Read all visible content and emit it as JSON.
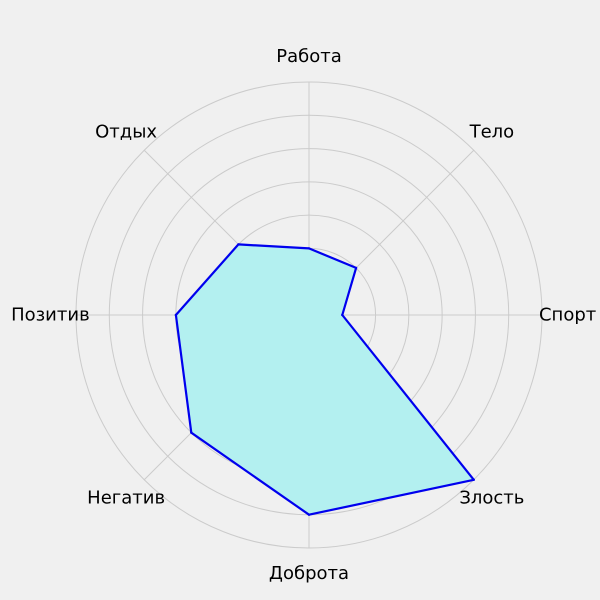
{
  "chart_data": {
    "type": "radar",
    "title": "",
    "categories": [
      "Спорт",
      "Тело",
      "Работа",
      "Отдых",
      "Позитив",
      "Негатив",
      "Доброта",
      "Злость"
    ],
    "values": [
      1,
      2,
      2,
      3,
      4,
      5,
      6,
      7
    ],
    "rlim": [
      0,
      7
    ],
    "rings": [
      1,
      2,
      3,
      4,
      5,
      6,
      7
    ],
    "grid": true,
    "series": [
      {
        "values": [
          1,
          2,
          2,
          3,
          4,
          5,
          6,
          7
        ]
      }
    ],
    "colors": {
      "background": "#f0f0f0",
      "grid": "#cbcbcb",
      "line": "#0000ee",
      "fill": "#b3f0f0"
    }
  }
}
